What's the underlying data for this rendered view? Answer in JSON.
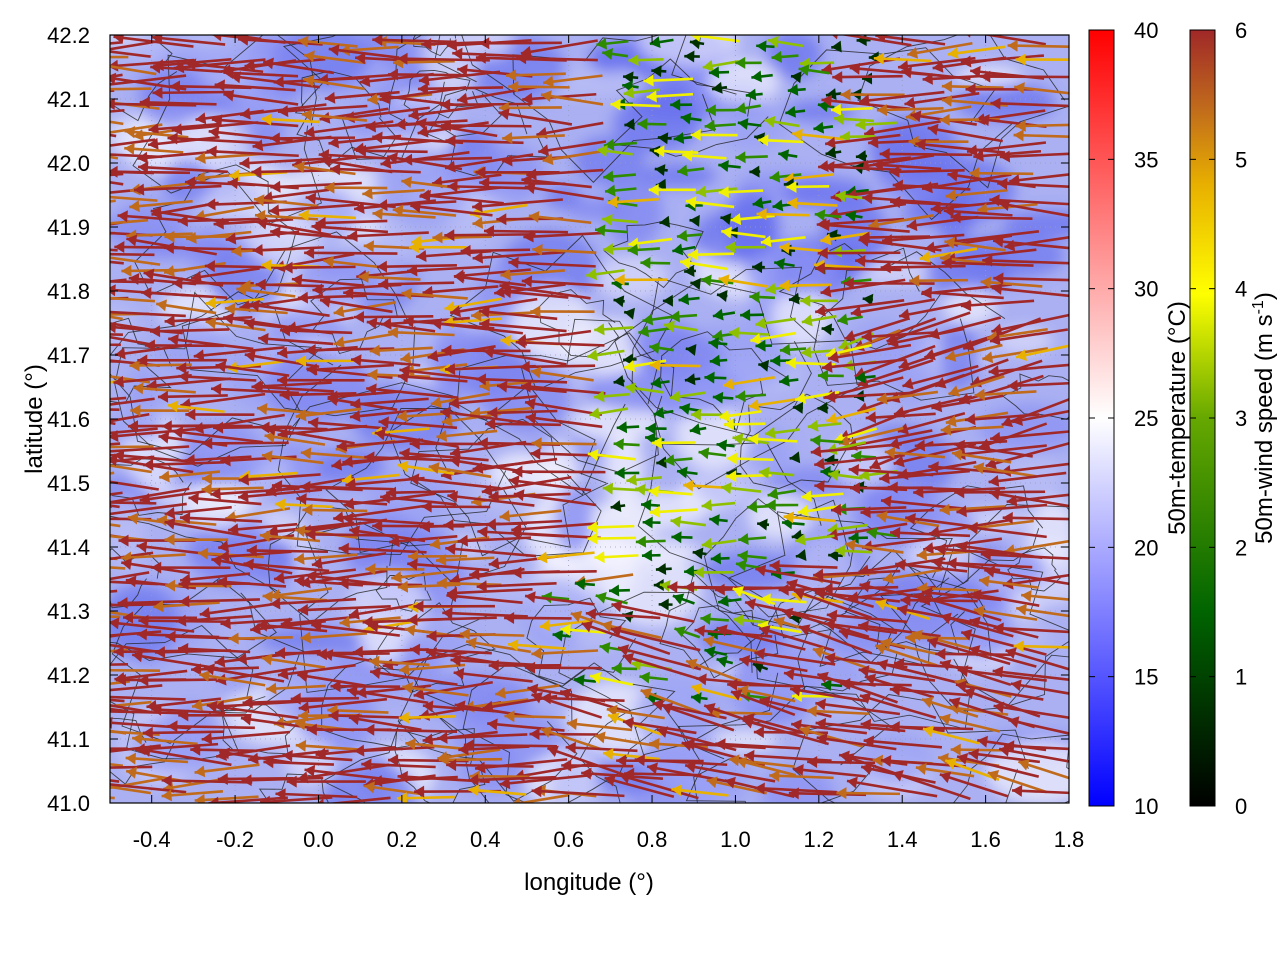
{
  "chart_data": {
    "type": "heatmap",
    "title": "",
    "xlabel": "longitude (°)",
    "ylabel": "latitude (°)",
    "xlim": [
      -0.5,
      1.8
    ],
    "ylim": [
      41.0,
      42.2
    ],
    "xticks": [
      -0.4,
      -0.2,
      0.0,
      0.2,
      0.4,
      0.6,
      0.8,
      1.0,
      1.2,
      1.4,
      1.6,
      1.8
    ],
    "xtick_labels": [
      "-0.4",
      "-0.2",
      "0.0",
      "0.2",
      "0.4",
      "0.6",
      "0.8",
      "1.0",
      "1.2",
      "1.4",
      "1.6",
      "1.8"
    ],
    "yticks": [
      41.0,
      41.1,
      41.2,
      41.3,
      41.4,
      41.5,
      41.6,
      41.7,
      41.8,
      41.9,
      42.0,
      42.1,
      42.2
    ],
    "ytick_labels": [
      "41.0",
      "41.1",
      "41.2",
      "41.3",
      "41.4",
      "41.5",
      "41.6",
      "41.7",
      "41.8",
      "41.9",
      "42.0",
      "42.1",
      "42.2"
    ],
    "grid": true,
    "temperature_colorbar": {
      "label": "50m-temperature (°C)",
      "range": [
        10,
        40
      ],
      "ticks": [
        10,
        15,
        20,
        25,
        30,
        35,
        40
      ],
      "tick_labels": [
        "10",
        "15",
        "20",
        "25",
        "30",
        "35",
        "40"
      ],
      "colors": [
        "#0000ff",
        "#ffffff",
        "#ff0000"
      ]
    },
    "wind_colorbar": {
      "label": "50m-wind speed (m s",
      "label_sup": "-1",
      "label_end": ")",
      "range": [
        0,
        6
      ],
      "ticks": [
        0,
        1,
        2,
        3,
        4,
        5,
        6
      ],
      "tick_labels": [
        "0",
        "1",
        "2",
        "3",
        "4",
        "5",
        "6"
      ],
      "colors": [
        "#000000",
        "#006400",
        "#66a800",
        "#ffff00",
        "#e8b000",
        "#c06a1c",
        "#a02828"
      ]
    },
    "temperature_field_mean": 17,
    "wind_field_note": "predominantly westward (easterly) flow, speeds mostly 3-6 m/s; weaker flow (0-2 m/s) near lon 0.9-1.3, lat 41.2-42.2"
  }
}
